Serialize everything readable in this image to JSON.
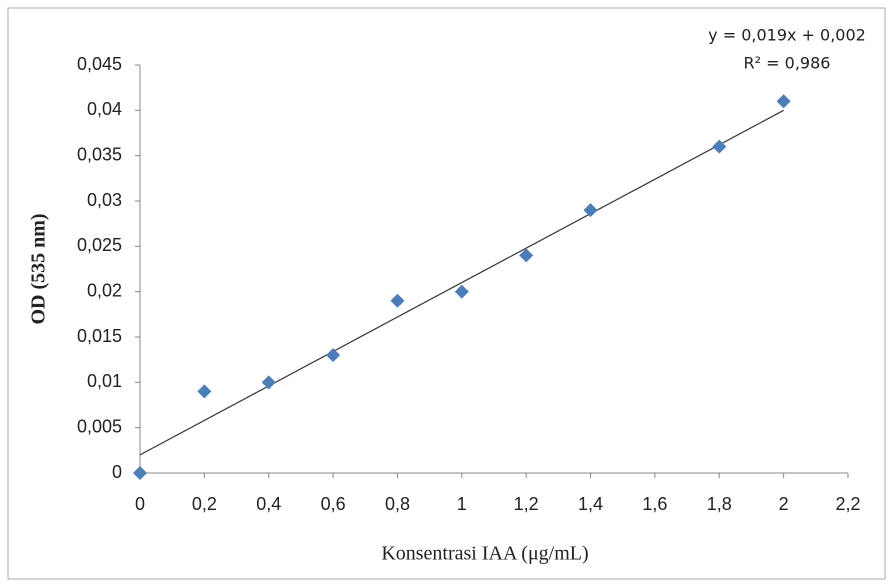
{
  "chart_data": {
    "type": "scatter",
    "x_label": "Konsentrasi IAA (μg/mL)",
    "y_label": "OD (535 nm)",
    "series": [
      {
        "name": "OD",
        "color": "#4a7ebb",
        "x": [
          0,
          0.2,
          0.4,
          0.6,
          0.8,
          1,
          1.2,
          1.4,
          1.8,
          2
        ],
        "values": [
          0,
          0.009,
          0.01,
          0.013,
          0.019,
          0.02,
          0.024,
          0.029,
          0.036,
          0.041
        ]
      }
    ],
    "trendline": {
      "slope": 0.019,
      "intercept": 0.002,
      "color": "#333333",
      "equation": "y = 0,019x + 0,002",
      "r2_label": "R² = 0,986"
    },
    "xlim": [
      0,
      2.2
    ],
    "xticks": [
      0,
      {
        "value": 0.2,
        "label": "0,2"
      },
      {
        "value": 0.4,
        "label": "0,4"
      },
      {
        "value": 0.6,
        "label": "0,6"
      },
      {
        "value": 0.8,
        "label": "0,8"
      },
      1,
      {
        "value": 1.2,
        "label": "1,2"
      },
      {
        "value": 1.4,
        "label": "1,4"
      },
      {
        "value": 1.6,
        "label": "1,6"
      },
      {
        "value": 1.8,
        "label": "1,8"
      },
      2,
      {
        "value": 2.2,
        "label": "2,2"
      }
    ],
    "ylim": [
      0,
      0.045
    ],
    "yticks": [
      0,
      {
        "value": 0.005,
        "label": "0,005"
      },
      {
        "value": 0.01,
        "label": "0,01"
      },
      {
        "value": 0.015,
        "label": "0,015"
      },
      {
        "value": 0.02,
        "label": "0,02"
      },
      {
        "value": 0.025,
        "label": "0,025"
      },
      {
        "value": 0.03,
        "label": "0,03"
      },
      {
        "value": 0.035,
        "label": "0,035"
      },
      {
        "value": 0.04,
        "label": "0,04"
      },
      {
        "value": 0.045,
        "label": "0,045"
      }
    ],
    "grid": false
  }
}
